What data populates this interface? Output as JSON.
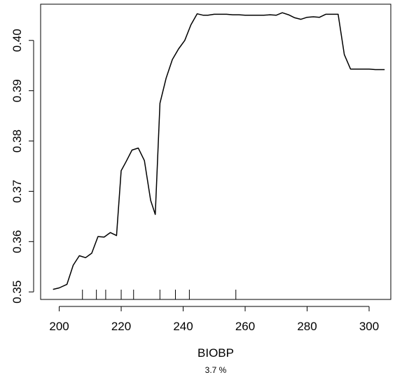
{
  "chart_data": {
    "type": "line",
    "xlabel": "BIOBP",
    "subtitle": "3.7 %",
    "ylabel": "",
    "xlim": [
      194,
      307
    ],
    "ylim": [
      0.3485,
      0.4072
    ],
    "x_ticks": [
      200,
      220,
      240,
      260,
      280,
      300
    ],
    "y_ticks": [
      0.35,
      0.36,
      0.37,
      0.38,
      0.39,
      0.4
    ],
    "y_tick_labels": [
      "0.35",
      "0.36",
      "0.37",
      "0.38",
      "0.39",
      "0.40"
    ],
    "grid": false,
    "rug": [
      207.5,
      212,
      215,
      220,
      224,
      232.5,
      237.5,
      242,
      257
    ],
    "series": [
      {
        "x": [
          198,
          200,
          202.5,
          204.5,
          206.5,
          208.5,
          210.5,
          212.5,
          214.5,
          216.5,
          218.5,
          220,
          221.5,
          223.5,
          225.5,
          227.5,
          229.5,
          231,
          232.5,
          234.5,
          236.5,
          238.5,
          240.5,
          242.5,
          244.5,
          246.5,
          248,
          250,
          252,
          254,
          256,
          258,
          260,
          262,
          264,
          266,
          268,
          270,
          272,
          274,
          276,
          278,
          280,
          282,
          284,
          286,
          288,
          290,
          292,
          294,
          296,
          298,
          300,
          302,
          304,
          305
        ],
        "y": [
          0.3505,
          0.3508,
          0.3515,
          0.3553,
          0.3572,
          0.3568,
          0.3577,
          0.361,
          0.3609,
          0.3618,
          0.3612,
          0.3741,
          0.3758,
          0.3782,
          0.3786,
          0.3761,
          0.3682,
          0.3654,
          0.3875,
          0.3925,
          0.3962,
          0.3983,
          0.4,
          0.4031,
          0.4053,
          0.405,
          0.405,
          0.4052,
          0.4052,
          0.4052,
          0.4051,
          0.4051,
          0.405,
          0.405,
          0.405,
          0.405,
          0.4051,
          0.405,
          0.4055,
          0.4051,
          0.4045,
          0.4042,
          0.4046,
          0.4047,
          0.4046,
          0.4052,
          0.4052,
          0.4052,
          0.3972,
          0.3943,
          0.3943,
          0.3943,
          0.3943,
          0.3942,
          0.3942,
          0.3942
        ]
      }
    ]
  }
}
